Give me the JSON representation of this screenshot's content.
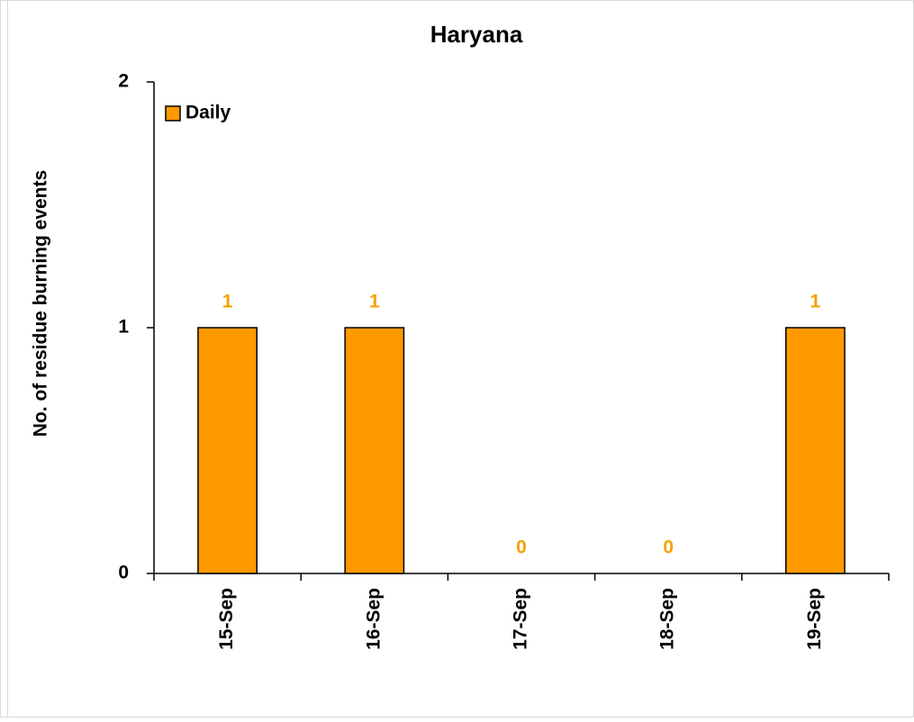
{
  "chart_data": {
    "type": "bar",
    "title": "Haryana",
    "y_label": "No. of residue burning events",
    "categories": [
      "15-Sep",
      "16-Sep",
      "17-Sep",
      "18-Sep",
      "19-Sep"
    ],
    "series": [
      {
        "name": "Daily",
        "color": "#ff9900",
        "label_color": "#f5a000",
        "values": [
          1,
          1,
          0,
          0,
          1
        ]
      }
    ],
    "ylim": [
      0,
      2
    ],
    "yticks": [
      0,
      1,
      2
    ],
    "legend": "top-left",
    "grid": false
  }
}
